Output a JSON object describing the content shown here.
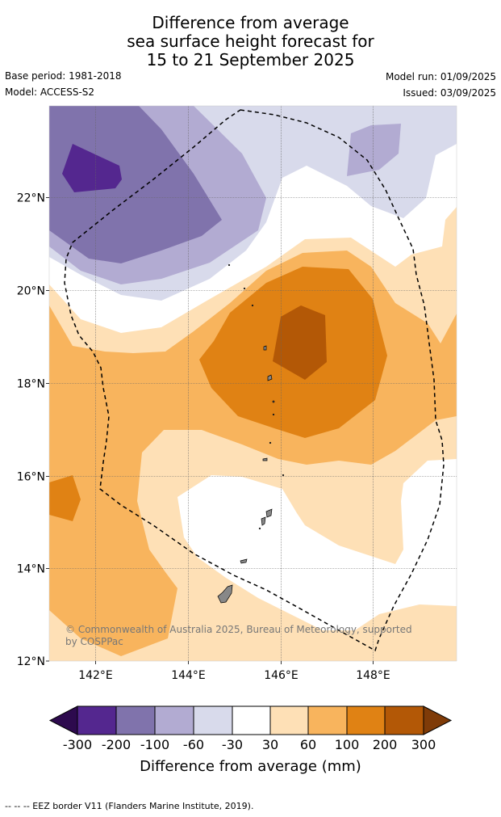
{
  "title": {
    "line1": "Difference from average",
    "line2": "sea surface height forecast for",
    "line3": "15 to 21 September 2025"
  },
  "meta": {
    "base_period": "Base period: 1981-2018",
    "model": "Model: ACCESS-S2",
    "model_run": "Model run: 01/09/2025",
    "issued": "Issued: 03/09/2025"
  },
  "map": {
    "lat_labels": [
      "22°N",
      "20°N",
      "18°N",
      "16°N",
      "14°N",
      "12°N"
    ],
    "lon_labels": [
      "142°E",
      "144°E",
      "146°E",
      "148°E"
    ],
    "credit": "© Commonwealth of Australia 2025, Bureau of Meteorology, supported by COSPPac"
  },
  "colorbar": {
    "ticks": [
      "-300",
      "-200",
      "-100",
      "-60",
      "-30",
      "30",
      "60",
      "100",
      "200",
      "300"
    ],
    "title": "Difference from average (mm)",
    "colors": {
      "below_-300": "#2d0a4e",
      "-300_-200": "#54278f",
      "-200_-100": "#8073ac",
      "-100_-60": "#b2abd2",
      "-60_-30": "#d8daeb",
      "-30_30": "#ffffff",
      "30_60": "#fee0b6",
      "60_100": "#f8b45d",
      "100_200": "#e08214",
      "200_300": "#b35806",
      "above_300": "#7f3b08"
    }
  },
  "footer": "--  --  -- EEZ border V11 (Flanders Marine Institute, 2019)."
}
